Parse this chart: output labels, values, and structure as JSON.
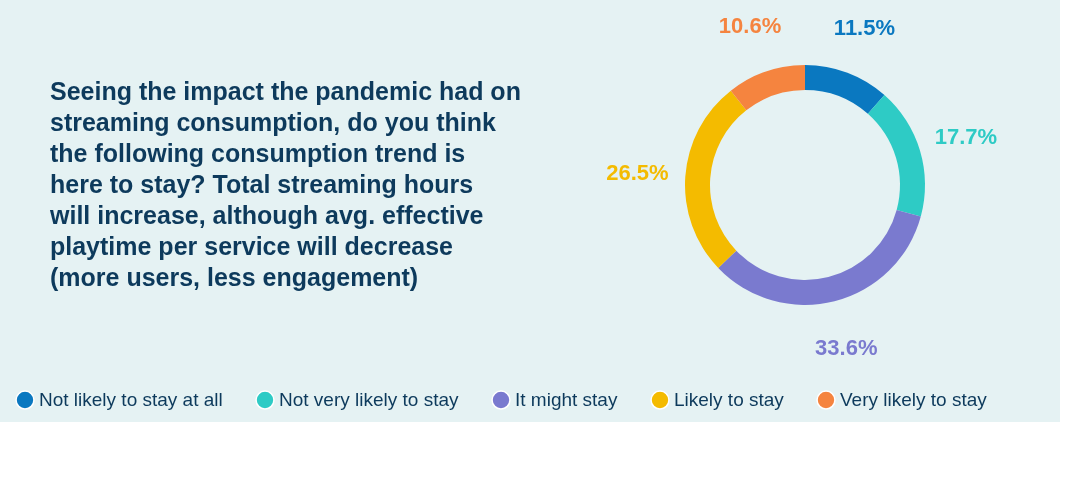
{
  "chart_data": {
    "type": "donut",
    "title": "Seeing the impact the pandemic had on streaming consumption, do you think the following consumption trend is here to stay? Total streaming hours will increase, although avg. effective playtime per service will decrease (more users, less engagement)",
    "categories": [
      "Not likely to stay at all",
      "Not very likely to stay",
      "It might stay",
      "Likely to stay",
      "Very likely to stay"
    ],
    "values": [
      11.5,
      17.7,
      33.6,
      26.5,
      10.6
    ],
    "value_labels": [
      "11.5%",
      "17.7%",
      "33.6%",
      "26.5%",
      "10.6%"
    ],
    "colors": [
      "#0a78c0",
      "#2ecbc5",
      "#7a7acf",
      "#f4bb00",
      "#f5843f"
    ],
    "legend": "bottom"
  }
}
